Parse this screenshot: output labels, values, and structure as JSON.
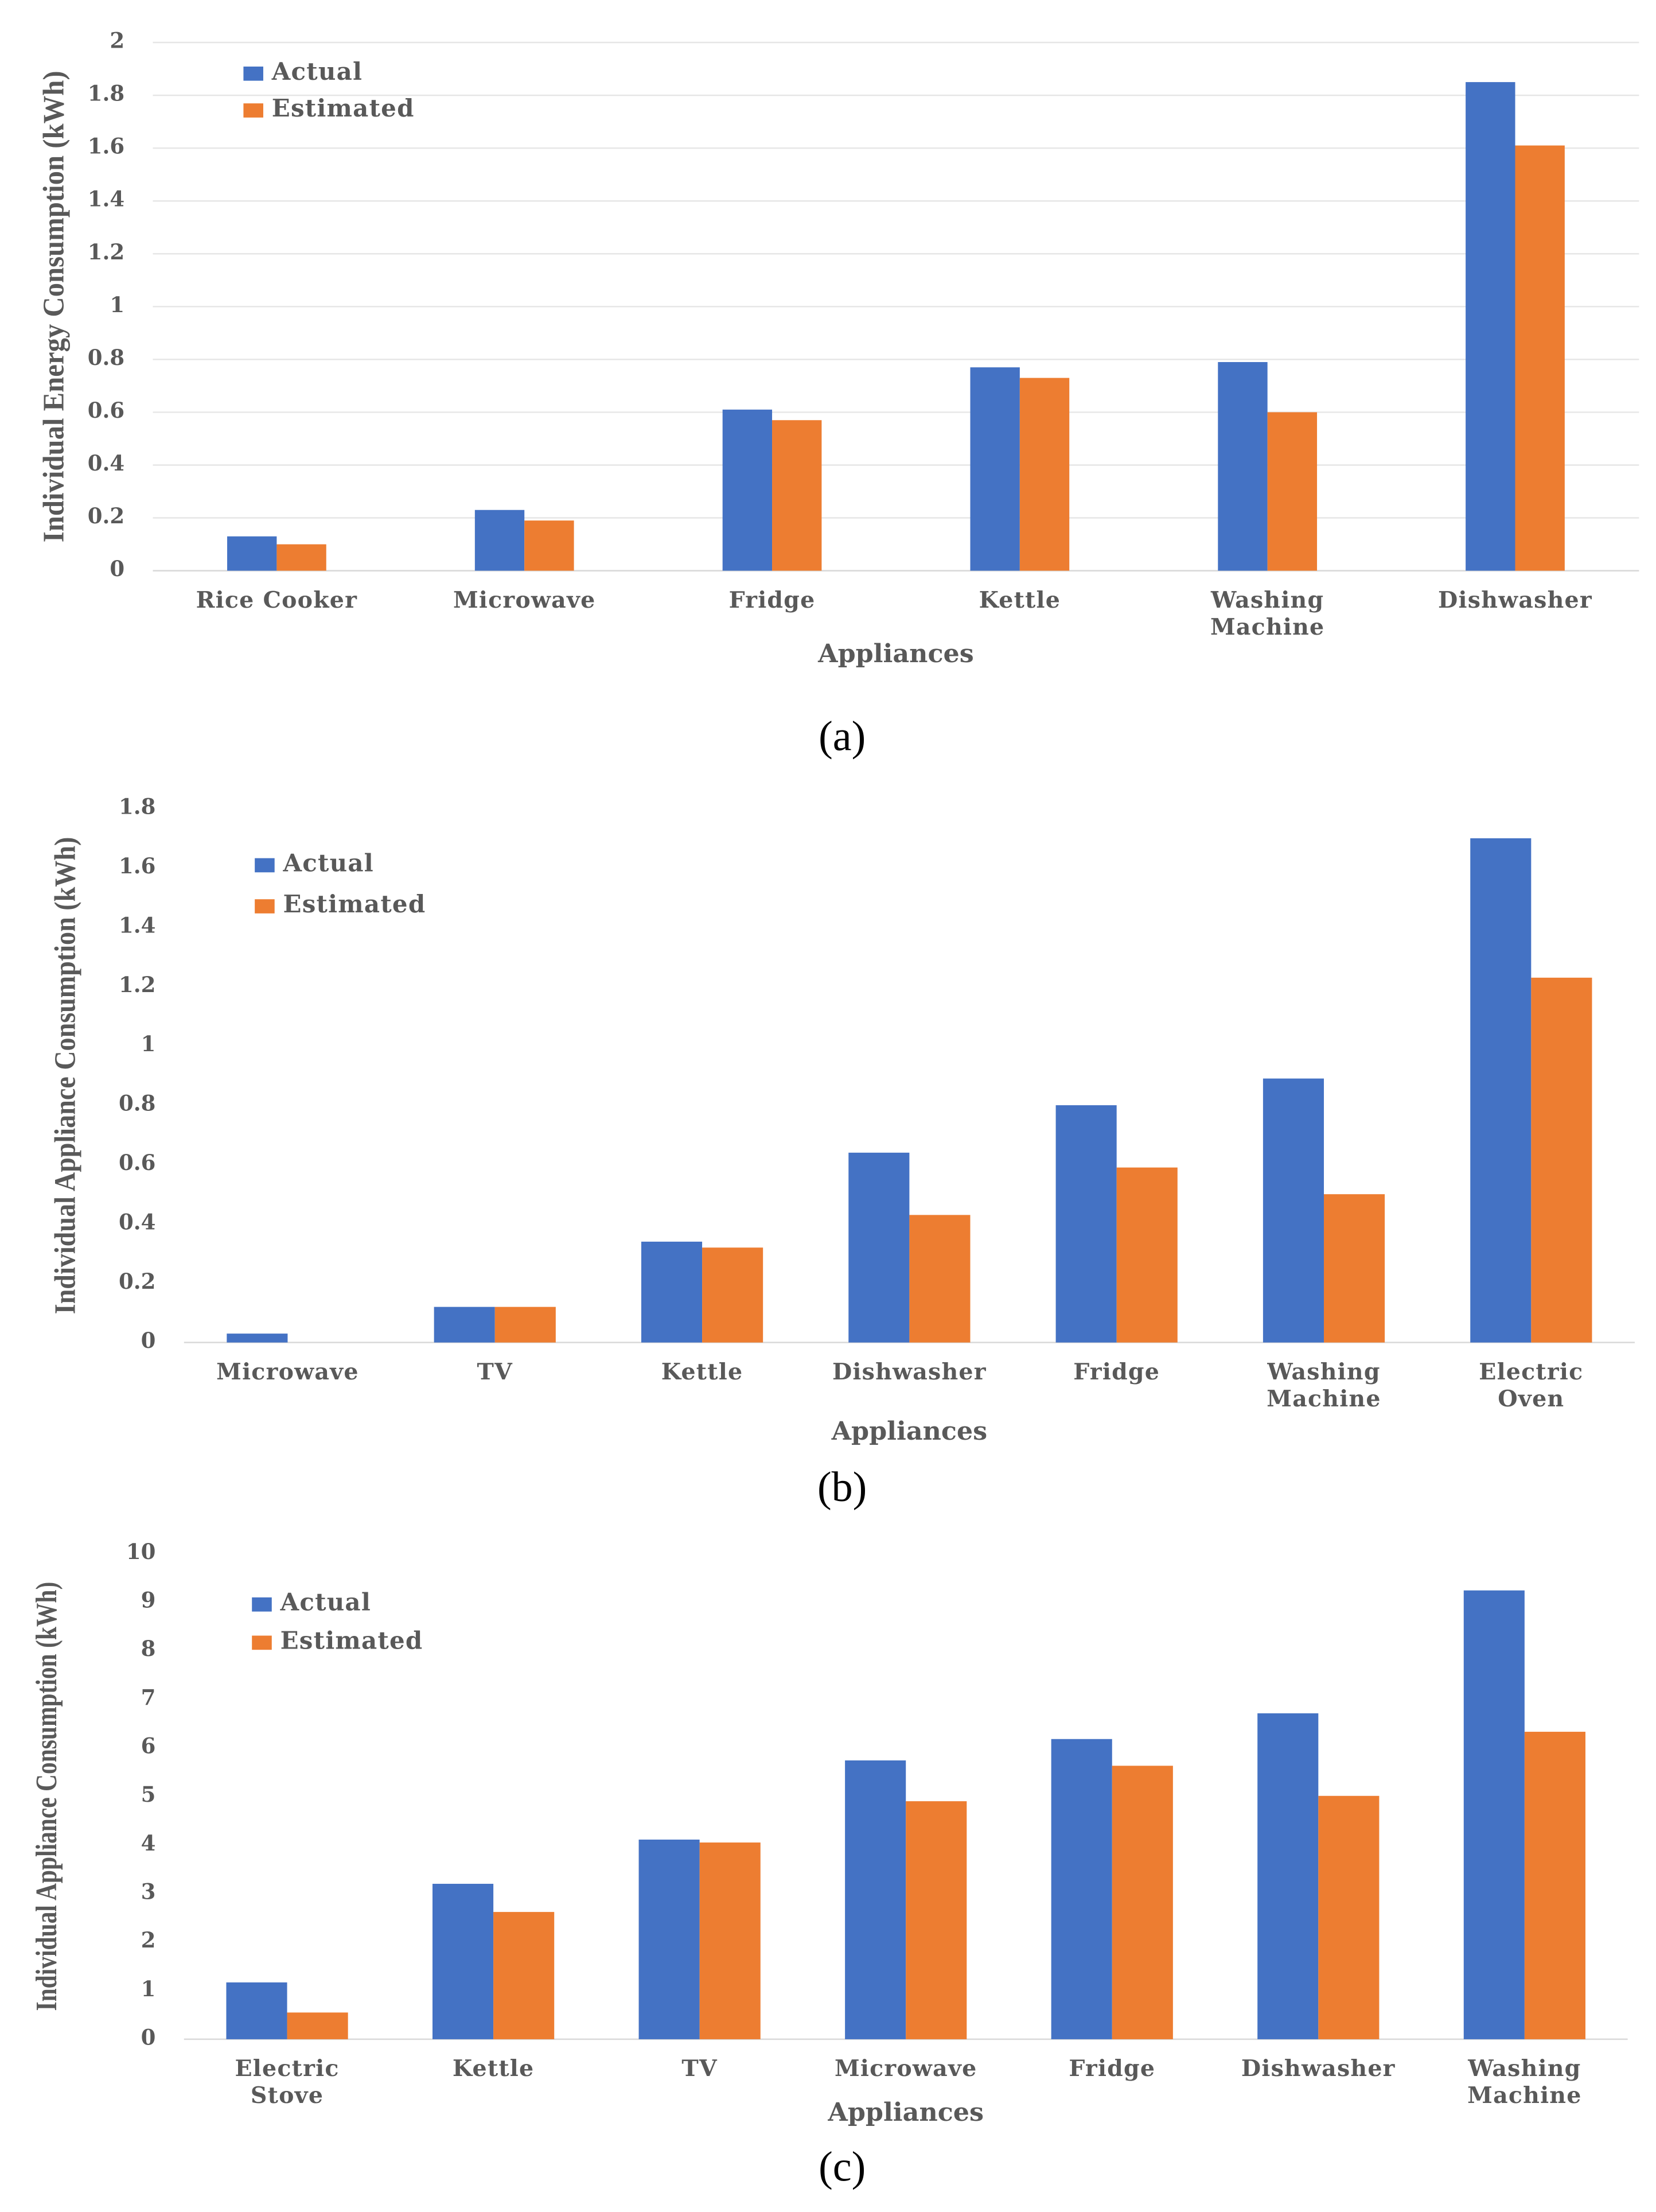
{
  "chart_data": [
    {
      "type": "bar",
      "panel_label": "(a)",
      "x_label": "Appliances",
      "y_label": "Individual Energy Consumption (kWh)",
      "categories": [
        "Rice Cooker",
        "Microwave",
        "Fridge",
        "Kettle",
        "Washing Machine",
        "Dishwasher"
      ],
      "series": [
        {
          "name": "Actual",
          "color": "#4472c4",
          "values": [
            0.13,
            0.23,
            0.61,
            0.77,
            0.79,
            1.85
          ]
        },
        {
          "name": "Estimated",
          "color": "#ed7d31",
          "values": [
            0.1,
            0.19,
            0.57,
            0.73,
            0.6,
            1.61
          ]
        }
      ],
      "ylim": [
        0,
        2
      ],
      "yticks": [
        0,
        0.2,
        0.4,
        0.6,
        0.8,
        1,
        1.2,
        1.4,
        1.6,
        1.8,
        2
      ],
      "grid": true,
      "legend": "upper left"
    },
    {
      "type": "bar",
      "panel_label": "(b)",
      "x_label": "Appliances",
      "y_label": "Individual Appliance Consumption (kWh)",
      "categories": [
        "Microwave",
        "TV",
        "Kettle",
        "Dishwasher",
        "Fridge",
        "Washing Machine",
        "Electric Oven"
      ],
      "series": [
        {
          "name": "Actual",
          "color": "#4472c4",
          "values": [
            0.03,
            0.12,
            0.34,
            0.64,
            0.8,
            0.89,
            1.7
          ]
        },
        {
          "name": "Estimated",
          "color": "#ed7d31",
          "values": [
            0,
            0.12,
            0.32,
            0.43,
            0.59,
            0.5,
            1.23
          ]
        }
      ],
      "ylim": [
        0,
        1.8
      ],
      "yticks": [
        0,
        0.2,
        0.4,
        0.6,
        0.8,
        1,
        1.2,
        1.4,
        1.6,
        1.8
      ],
      "grid": false,
      "legend": "upper left"
    },
    {
      "type": "bar",
      "panel_label": "(c)",
      "x_label": "Appliances",
      "y_label": "Individual Appliance Consumption (kWh)",
      "categories": [
        "Electric Stove",
        "Kettle",
        "TV",
        "Microwave",
        "Fridge",
        "Dishwasher",
        "Washing Machine"
      ],
      "series": [
        {
          "name": "Actual",
          "color": "#4472c4",
          "values": [
            1.17,
            3.2,
            4.11,
            5.74,
            6.18,
            6.71,
            9.24
          ]
        },
        {
          "name": "Estimated",
          "color": "#ed7d31",
          "values": [
            0.55,
            2.62,
            4.05,
            4.9,
            5.63,
            5.01,
            6.33
          ]
        }
      ],
      "ylim": [
        0,
        10
      ],
      "yticks": [
        0,
        1,
        2,
        3,
        4,
        5,
        6,
        7,
        8,
        9,
        10
      ],
      "grid": false,
      "legend": "upper left"
    }
  ]
}
